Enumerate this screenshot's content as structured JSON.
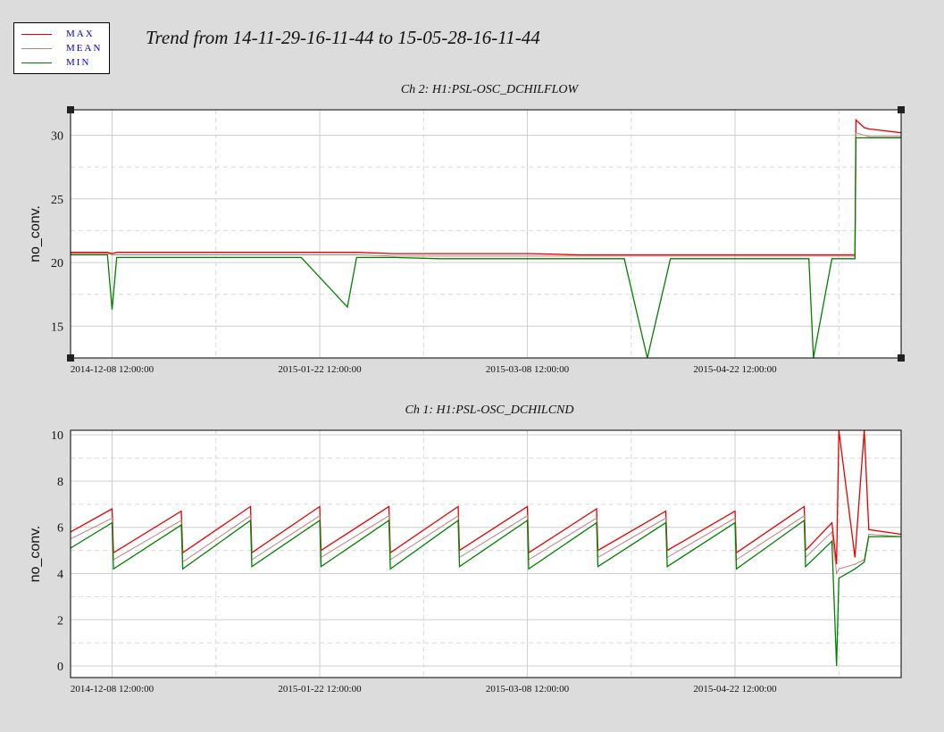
{
  "title": "Trend from 14-11-29-16-11-44 to 15-05-28-16-11-44",
  "legend": [
    {
      "label": "MAX",
      "color": "#e60000"
    },
    {
      "label": "MEAN",
      "color": "#c08080"
    },
    {
      "label": "MIN",
      "color": "#008000"
    }
  ],
  "chart_data": [
    {
      "type": "line",
      "title": "Ch 2: H1:PSL-OSC_DCHILFLOW",
      "xlabel": "",
      "ylabel": "no_conv.",
      "x_ticks": [
        "2014-12-08 12:00:00",
        "2015-01-22 12:00:00",
        "2015-03-08 12:00:00",
        "2015-04-22 12:00:00"
      ],
      "ylim": [
        12.5,
        32
      ],
      "yticks": [
        15,
        20,
        25,
        30
      ],
      "grid": true,
      "legend": "top-left",
      "x_unit": "days after 2014-11-29 16:11:44",
      "x": [
        0,
        8,
        9,
        10,
        20,
        30,
        40,
        50,
        60,
        62,
        70,
        80,
        90,
        100,
        110,
        120,
        125,
        130,
        140,
        150,
        160,
        161,
        165,
        170,
        170.2,
        172,
        173,
        180
      ],
      "series": [
        {
          "name": "MAX",
          "values": [
            20.8,
            20.8,
            20.7,
            20.8,
            20.8,
            20.8,
            20.8,
            20.8,
            20.8,
            20.8,
            20.7,
            20.7,
            20.7,
            20.7,
            20.6,
            20.6,
            20.6,
            20.6,
            20.6,
            20.6,
            20.6,
            20.6,
            20.6,
            20.6,
            31.2,
            30.6,
            30.5,
            30.2
          ]
        },
        {
          "name": "MEAN",
          "values": [
            20.7,
            20.7,
            20.6,
            20.6,
            20.6,
            20.6,
            20.6,
            20.6,
            20.6,
            20.6,
            20.5,
            20.5,
            20.5,
            20.5,
            20.5,
            20.5,
            20.5,
            20.5,
            20.5,
            20.5,
            20.5,
            20.5,
            20.5,
            20.5,
            30.2,
            30.0,
            29.9,
            29.9
          ]
        },
        {
          "name": "MIN",
          "values": [
            20.6,
            20.6,
            16.3,
            20.4,
            20.4,
            20.4,
            20.4,
            20.4,
            16.5,
            20.4,
            20.4,
            20.3,
            20.3,
            20.3,
            20.3,
            20.3,
            12.5,
            20.3,
            20.3,
            20.3,
            20.3,
            12.5,
            20.3,
            20.3,
            29.8,
            29.8,
            29.8,
            29.8
          ]
        }
      ]
    },
    {
      "type": "line",
      "title": "Ch 1: H1:PSL-OSC_DCHILCND",
      "xlabel": "",
      "ylabel": "no_conv.",
      "x_ticks": [
        "2014-12-08 12:00:00",
        "2015-01-22 12:00:00",
        "2015-03-08 12:00:00",
        "2015-04-22 12:00:00"
      ],
      "ylim": [
        -0.5,
        10.2
      ],
      "yticks": [
        0,
        2,
        4,
        6,
        8,
        10
      ],
      "grid": true,
      "legend": "top-left",
      "x_unit": "days after 2014-11-29 16:11:44",
      "x": [
        0,
        9,
        9.3,
        24,
        24.3,
        39,
        39.3,
        54,
        54.3,
        69,
        69.3,
        84,
        84.3,
        99,
        99.3,
        114,
        114.3,
        129,
        129.3,
        144,
        144.3,
        159,
        159.3,
        165,
        166,
        166.5,
        170,
        172,
        173,
        180
      ],
      "series": [
        {
          "name": "MAX",
          "values": [
            5.8,
            6.8,
            4.9,
            6.7,
            4.9,
            6.9,
            4.9,
            6.9,
            5.0,
            6.9,
            4.9,
            6.9,
            5.0,
            6.9,
            4.9,
            6.8,
            5.0,
            6.7,
            5.0,
            6.7,
            4.9,
            6.9,
            5.0,
            6.2,
            4.4,
            10.2,
            4.7,
            10.2,
            5.9,
            5.7
          ]
        },
        {
          "name": "MEAN",
          "values": [
            5.5,
            6.4,
            4.6,
            6.3,
            4.5,
            6.5,
            4.6,
            6.5,
            4.7,
            6.5,
            4.6,
            6.5,
            4.7,
            6.5,
            4.6,
            6.4,
            4.7,
            6.4,
            4.7,
            6.4,
            4.6,
            6.5,
            4.7,
            5.8,
            4.0,
            4.2,
            4.4,
            4.6,
            5.7,
            5.6
          ]
        },
        {
          "name": "MIN",
          "values": [
            5.1,
            6.2,
            4.2,
            6.1,
            4.2,
            6.3,
            4.3,
            6.3,
            4.3,
            6.3,
            4.2,
            6.3,
            4.3,
            6.3,
            4.2,
            6.2,
            4.3,
            6.2,
            4.3,
            6.2,
            4.2,
            6.3,
            4.3,
            5.4,
            0.0,
            3.8,
            4.2,
            4.5,
            5.6,
            5.6
          ]
        }
      ]
    }
  ]
}
